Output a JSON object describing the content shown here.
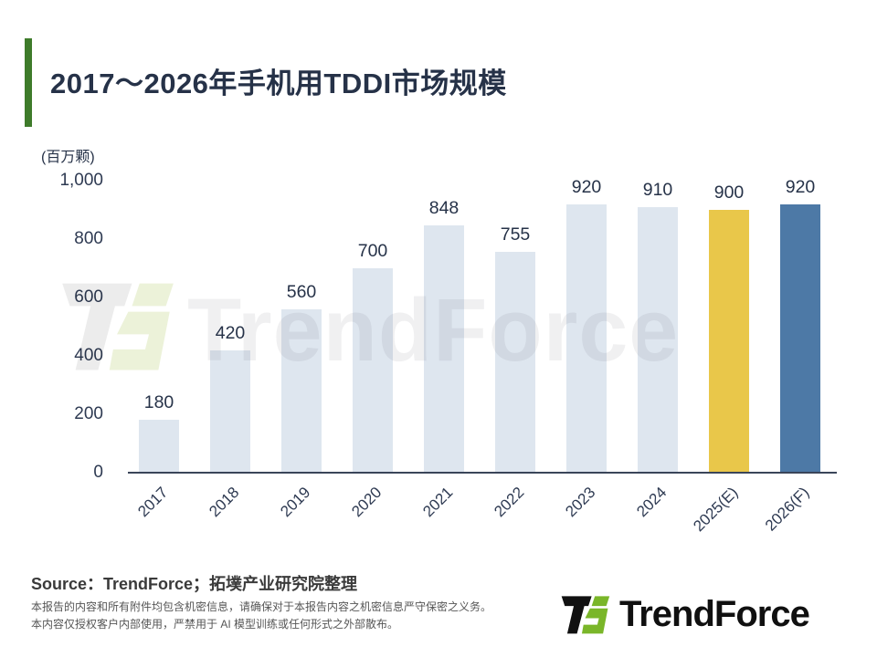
{
  "header": {
    "title": "2017～2026年手机用TDDI市场规模"
  },
  "chart_data": {
    "type": "bar",
    "title": "2017～2026年手机用TDDI市场规模",
    "unit_label": "(百万颗)",
    "ylabel": "(百万颗)",
    "xlabel": "",
    "categories": [
      "2017",
      "2018",
      "2019",
      "2020",
      "2021",
      "2022",
      "2023",
      "2024",
      "2025(E)",
      "2026(F)"
    ],
    "values": [
      180,
      420,
      560,
      700,
      848,
      755,
      920,
      910,
      900,
      920
    ],
    "bar_colors": [
      "#dee6ef",
      "#dee6ef",
      "#dee6ef",
      "#dee6ef",
      "#dee6ef",
      "#dee6ef",
      "#dee6ef",
      "#dee6ef",
      "#e9c74a",
      "#4d79a6"
    ],
    "ylim": [
      0,
      1000
    ],
    "yticks": [
      {
        "value": 0,
        "label": "0"
      },
      {
        "value": 200,
        "label": "200"
      },
      {
        "value": 400,
        "label": "400"
      },
      {
        "value": 600,
        "label": "600"
      },
      {
        "value": 800,
        "label": "800"
      },
      {
        "value": 1000,
        "label": "1,000"
      }
    ],
    "grid": false,
    "legend": "none"
  },
  "watermark": {
    "text": "TrendForce"
  },
  "footer": {
    "source": "Source：TrendForce；拓墣产业研究院整理",
    "disclaimer_line1": "本报告的内容和所有附件均包含机密信息，请确保对于本报告内容之机密信息严守保密之义务。",
    "disclaimer_line2": "本内容仅授权客户内部使用，严禁用于 AI 模型训练或任何形式之外部散布。",
    "logo_text": "TrendForce"
  },
  "colors": {
    "accent_green": "#3e7b2a",
    "title_navy": "#263248",
    "axis_navy": "#3a4559",
    "bar_default": "#dee6ef",
    "bar_estimate": "#e9c74a",
    "bar_forecast": "#4d79a6",
    "logo_green": "#7ab629"
  }
}
